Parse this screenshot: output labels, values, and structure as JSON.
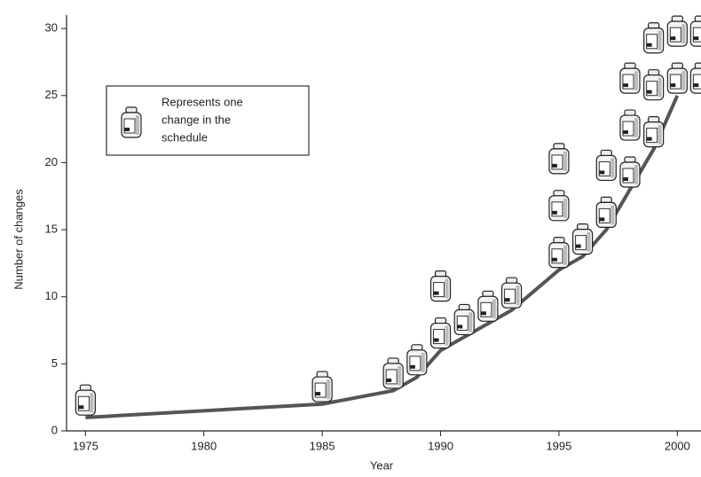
{
  "chart_data": {
    "type": "line",
    "x_label": "Year",
    "y_label": "Number of changes",
    "legend_text": [
      "Represents one",
      "change in the",
      "schedule"
    ],
    "x": [
      1975,
      1985,
      1988,
      1989,
      1990,
      1991,
      1992,
      1993,
      1995,
      1996,
      1997,
      1998,
      1999,
      2000
    ],
    "series": [
      {
        "name": "Number of changes",
        "color": "#555555",
        "values": [
          1,
          2,
          3,
          4,
          6,
          7,
          8,
          9,
          12,
          13,
          15,
          18,
          21,
          25
        ]
      }
    ],
    "changes": [
      1,
      1,
      1,
      1,
      2,
      1,
      1,
      1,
      3,
      1,
      2,
      3,
      3,
      4
    ],
    "xlim": [
      1974.2,
      2001
    ],
    "xticks": [
      1975,
      1980,
      1985,
      1990,
      1995,
      2000
    ],
    "ylim": [
      0,
      31
    ],
    "yticks": [
      0,
      5,
      10,
      15,
      20,
      25,
      30
    ]
  }
}
